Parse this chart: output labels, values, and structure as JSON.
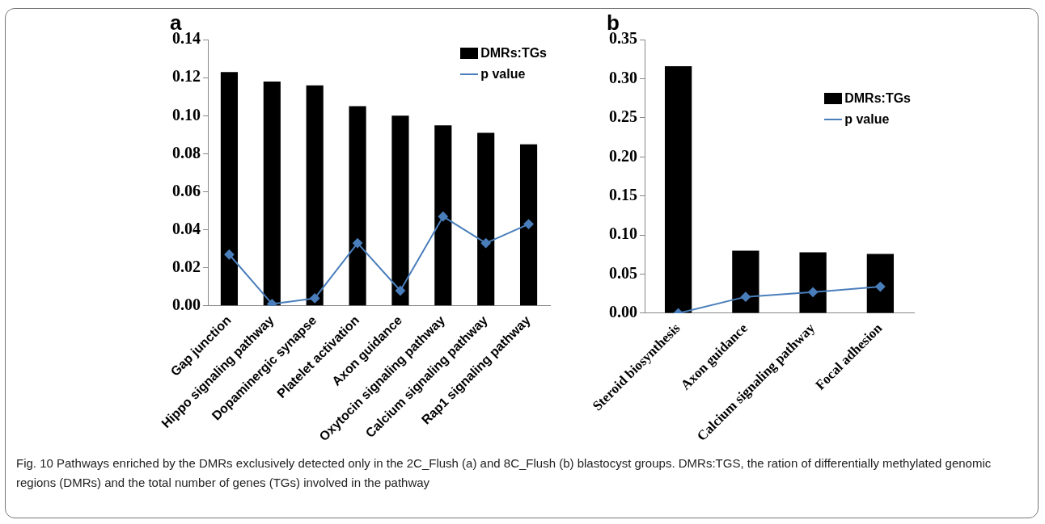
{
  "chart_data": [
    {
      "type": "bar",
      "title": "a",
      "categories": [
        "Gap junction",
        "Hippo signaling pathway",
        "Dopaminergic synapse",
        "Platelet activation",
        "Axon guidance",
        "Oxytocin signaling pathway",
        "Calcium signaling pathway",
        "Rap1 signaling pathway"
      ],
      "series": [
        {
          "name": "DMRs:TGs",
          "color": "#000000",
          "values": [
            0.123,
            0.118,
            0.116,
            0.105,
            0.1,
            0.095,
            0.091,
            0.085
          ]
        },
        {
          "name": "p value",
          "type": "line",
          "color": "#4a7ebb",
          "values": [
            0.027,
            0.001,
            0.004,
            0.033,
            0.008,
            0.047,
            0.033,
            0.043
          ]
        }
      ],
      "ylim": [
        0,
        0.14
      ],
      "yticks": [
        {
          "value": 0,
          "label": "0.00"
        },
        {
          "value": 0.02,
          "label": "0.02"
        },
        {
          "value": 0.04,
          "label": "0.04"
        },
        {
          "value": 0.06,
          "label": "0.06"
        },
        {
          "value": 0.08,
          "label": "0.08"
        },
        {
          "value": 0.1,
          "label": "0.10"
        },
        {
          "value": 0.12,
          "label": "0.12"
        },
        {
          "value": 0.14,
          "label": "0.14"
        }
      ],
      "grid": false,
      "legend": "top right",
      "marker": "diamond",
      "annotations": [
        "Fig. 10 Pathways enriched by the DMRs exclusively detected only in the 2C_Flush (a) and 8C_Flush (b) blastocyst groups. DMRs:TGS, the ration of differentially methylated genomic regions (DMRs) and the total number of genes (TGs) involved in the pathway"
      ]
    },
    {
      "type": "bar",
      "title": "b",
      "categories": [
        "Steroid biosynthesis",
        "Axon guidance",
        "Calcium signaling pathway",
        "Focal adhesion"
      ],
      "series": [
        {
          "name": "DMRs:TGs",
          "color": "#000000",
          "values": [
            0.316,
            0.08,
            0.078,
            0.076
          ]
        },
        {
          "name": "p value",
          "type": "line",
          "color": "#4a7ebb",
          "values": [
            0.0,
            0.021,
            0.027,
            0.034
          ]
        }
      ],
      "ylim": [
        0,
        0.35
      ],
      "yticks": [
        {
          "value": 0,
          "label": "0.00"
        },
        {
          "value": 0.05,
          "label": "0.05"
        },
        {
          "value": 0.1,
          "label": "0.10"
        },
        {
          "value": 0.15,
          "label": "0.15"
        },
        {
          "value": 0.2,
          "label": "0.20"
        },
        {
          "value": 0.25,
          "label": "0.25"
        },
        {
          "value": 0.3,
          "label": "0.30"
        },
        {
          "value": 0.35,
          "label": "0.35"
        }
      ],
      "grid": false,
      "legend": "right",
      "marker": "diamond"
    }
  ]
}
